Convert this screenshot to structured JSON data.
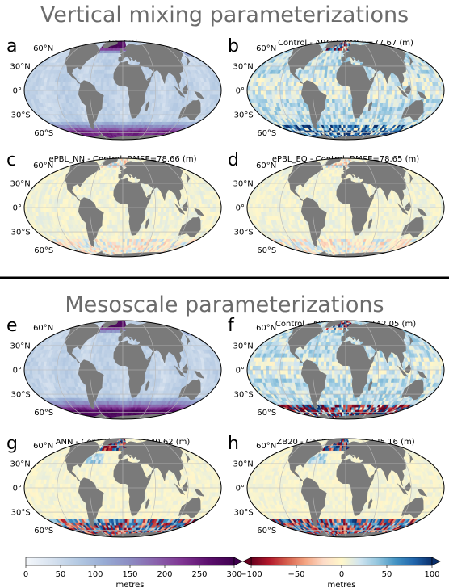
{
  "sections": [
    {
      "title": "Vertical mixing parameterizations"
    },
    {
      "title": "Mesoscale parameterizations"
    }
  ],
  "lat_labels": [
    "60°N",
    "30°N",
    "0°",
    "30°S",
    "60°S"
  ],
  "chart_data": [
    {
      "type": "heatmap",
      "panel": "a",
      "title": "Control",
      "field": "absolute",
      "colorbar": "sequential"
    },
    {
      "type": "heatmap",
      "panel": "b",
      "title": "Control - ARGO, RMSE=77.67 (m)",
      "field": "difference",
      "rmse": 77.67,
      "colorbar": "diverging"
    },
    {
      "type": "heatmap",
      "panel": "c",
      "title": "ePBL_NN - Control, RMSE=78.66 (m)",
      "field": "difference",
      "rmse": 78.66,
      "colorbar": "diverging"
    },
    {
      "type": "heatmap",
      "panel": "d",
      "title": "ePBL_EQ - Control, RMSE=78.65 (m)",
      "field": "difference",
      "rmse": 78.65,
      "colorbar": "diverging"
    },
    {
      "type": "heatmap",
      "panel": "e",
      "title": "Control",
      "field": "absolute",
      "colorbar": "sequential"
    },
    {
      "type": "heatmap",
      "panel": "f",
      "title": "Control - ARGO, RMSE=142.05 (m)",
      "field": "difference",
      "rmse": 142.05,
      "colorbar": "diverging"
    },
    {
      "type": "heatmap",
      "panel": "g",
      "title": "ANN - Control, RMSE=140.62 (m)",
      "field": "difference",
      "rmse": 140.62,
      "colorbar": "diverging"
    },
    {
      "type": "heatmap",
      "panel": "h",
      "title": "ZB20 - Control, RMSE=125.16 (m)",
      "field": "difference",
      "rmse": 125.16,
      "colorbar": "diverging"
    }
  ],
  "colorbars": [
    {
      "name": "sequential",
      "label": "metres",
      "range": [
        0,
        300
      ],
      "ticks": [
        "0",
        "50",
        "100",
        "150",
        "200",
        "250",
        "300"
      ],
      "extend": "max",
      "colors": [
        "#f4f7fb",
        "#d7e2ef",
        "#b4c9e2",
        "#98acd4",
        "#8c8cc2",
        "#8a62ac",
        "#7f3592",
        "#5c0f6d",
        "#3f004f"
      ]
    },
    {
      "name": "diverging",
      "label": "metres",
      "range": [
        -100,
        100
      ],
      "ticks": [
        "−100",
        "−50",
        "0",
        "50",
        "100"
      ],
      "extend": "both",
      "colors": [
        "#67001f",
        "#b2182b",
        "#d6604d",
        "#f4a582",
        "#fddbc7",
        "#fff7c9",
        "#d1e5f0",
        "#92c5de",
        "#4393c3",
        "#2166ac",
        "#0a2f6b"
      ]
    }
  ],
  "colors": {
    "land": "#7a7a7a",
    "map_edge": "#000000",
    "section_title": "#6b6b6b",
    "divider": "#000000"
  }
}
